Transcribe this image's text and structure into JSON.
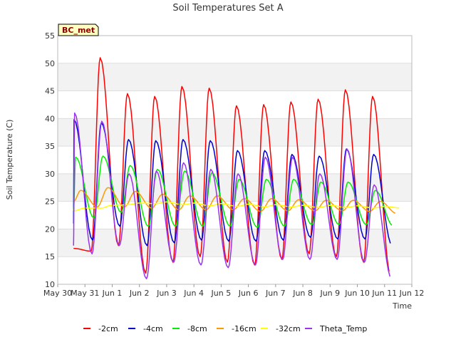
{
  "chart_data": {
    "type": "line",
    "title": "Soil Temperatures Set A",
    "xlabel": "Time",
    "ylabel": "Soil Temperature (C)",
    "station_badge": "BC_met",
    "xlim": [
      0,
      13
    ],
    "ylim": [
      10,
      55
    ],
    "x_ticks": [
      {
        "x": 0,
        "label": "May 30"
      },
      {
        "x": 1,
        "label": "May 31"
      },
      {
        "x": 2,
        "label": "Jun 1"
      },
      {
        "x": 3,
        "label": "Jun 2"
      },
      {
        "x": 4,
        "label": "Jun 3"
      },
      {
        "x": 5,
        "label": "Jun 4"
      },
      {
        "x": 6,
        "label": "Jun 5"
      },
      {
        "x": 7,
        "label": "Jun 6"
      },
      {
        "x": 8,
        "label": "Jun 7"
      },
      {
        "x": 9,
        "label": "Jun 8"
      },
      {
        "x": 10,
        "label": "Jun 9"
      },
      {
        "x": 11,
        "label": "Jun 10"
      },
      {
        "x": 12,
        "label": "Jun 11"
      },
      {
        "x": 13,
        "label": "Jun 12"
      }
    ],
    "y_ticks": [
      10,
      15,
      20,
      25,
      30,
      35,
      40,
      45,
      50,
      55
    ],
    "grid": true,
    "legend_position": "bottom",
    "series": [
      {
        "name": "-2cm",
        "color": "#ff0000",
        "daily_max": [
          52,
          51,
          44.5,
          44,
          45.8,
          45.5,
          42.3,
          42.5,
          43,
          43.5,
          45.2,
          44
        ],
        "daily_min": [
          14,
          16,
          17,
          12,
          14,
          15,
          14,
          13.5,
          14.5,
          15.5,
          15,
          14,
          11.5
        ],
        "x_range": [
          0.58,
          12.6
        ],
        "peak_offset": 0.56,
        "trough_offset": 0.23,
        "first_value": 16.5
      },
      {
        "name": "-4cm",
        "color": "#0000cc",
        "daily_max": [
          39.8,
          39.2,
          36.2,
          36,
          36.2,
          36,
          34.2,
          34.2,
          33.5,
          33.2,
          34.5,
          33.5
        ],
        "daily_min": [
          18,
          18,
          20.5,
          17,
          17.5,
          18,
          17.8,
          17.8,
          18,
          18.5,
          18.2,
          18.2,
          17
        ],
        "x_range": [
          0.58,
          12.6
        ],
        "peak_offset": 0.6,
        "trough_offset": 0.28,
        "first_value": 21
      },
      {
        "name": "-8cm",
        "color": "#00ee00",
        "daily_max": [
          33,
          33.2,
          31.5,
          30.8,
          30.5,
          30.2,
          29,
          29,
          29,
          28.5,
          28.5,
          27
        ],
        "daily_min": [
          21,
          22,
          23,
          20.5,
          20.5,
          20.5,
          20.5,
          20.3,
          20.5,
          20.8,
          20.8,
          20.8,
          20.5
        ],
        "x_range": [
          0.58,
          12.6
        ],
        "peak_offset": 0.66,
        "trough_offset": 0.33,
        "first_value": 23.5
      },
      {
        "name": "-16cm",
        "color": "#ff9900",
        "daily_max": [
          27,
          27.5,
          26.8,
          26.3,
          26,
          26,
          25.5,
          25.5,
          25.3,
          25.2,
          25.2,
          25
        ],
        "daily_min": [
          23.5,
          24,
          24,
          23.8,
          23.5,
          23.5,
          23.5,
          23.2,
          23.3,
          23.3,
          23.3,
          23.2,
          22.8
        ],
        "x_range": [
          0.58,
          12.6
        ],
        "peak_offset": 0.85,
        "trough_offset": 0.45,
        "first_value": 25
      },
      {
        "name": "-32cm",
        "color": "#ffff00",
        "daily_max": [
          23.8,
          24.3,
          24.7,
          24.9,
          24.7,
          24.6,
          24.5,
          24.4,
          24.3,
          24.3,
          24.2,
          24.1
        ],
        "daily_min": [
          23.3,
          23.8,
          24.4,
          24.6,
          24.4,
          24.2,
          24.1,
          24,
          24,
          23.9,
          23.9,
          23.8,
          23.8
        ],
        "x_range": [
          0.58,
          12.6
        ],
        "peak_offset": 1.0,
        "trough_offset": 0.6,
        "first_value": 23.5
      },
      {
        "name": "Theta_Temp",
        "color": "#9933ee",
        "daily_max": [
          41,
          39.5,
          30,
          30.5,
          32,
          30.8,
          30,
          33,
          33,
          30,
          34.5,
          28
        ],
        "daily_min": [
          13.5,
          15.5,
          17,
          11,
          14,
          13.5,
          13,
          13.5,
          14.5,
          14.5,
          14.5,
          14,
          11
        ],
        "x_range": [
          0.58,
          12.6
        ],
        "peak_offset": 0.62,
        "trough_offset": 0.26,
        "first_value": 17
      }
    ]
  }
}
